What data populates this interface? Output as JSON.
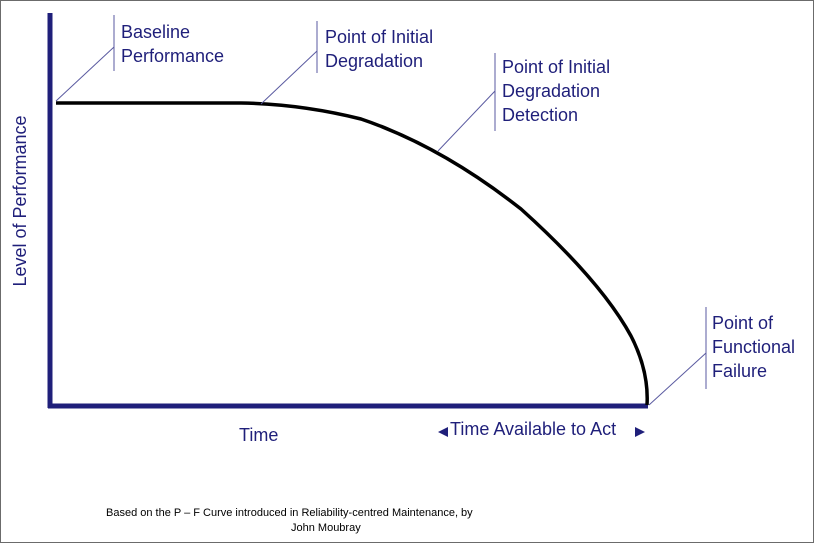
{
  "annotations": {
    "baseline": [
      "Baseline",
      "Performance"
    ],
    "initial_degradation": [
      "Point of Initial",
      "Degradation"
    ],
    "degradation_detection": [
      "Point of Initial",
      "Degradation",
      "Detection"
    ],
    "functional_failure": [
      "Point of",
      "Functional",
      "Failure"
    ]
  },
  "axes": {
    "y_label": "Level of Performance",
    "x_label": "Time",
    "interval_label": "Time Available to Act"
  },
  "credit": [
    "Based on the P – F Curve introduced in Reliability-centred Maintenance, by",
    "John Moubray"
  ],
  "colors": {
    "axis": "#1f1f7a",
    "curve": "#000000",
    "leader_line": "#5a5aa0",
    "text": "#1f1f7a"
  }
}
